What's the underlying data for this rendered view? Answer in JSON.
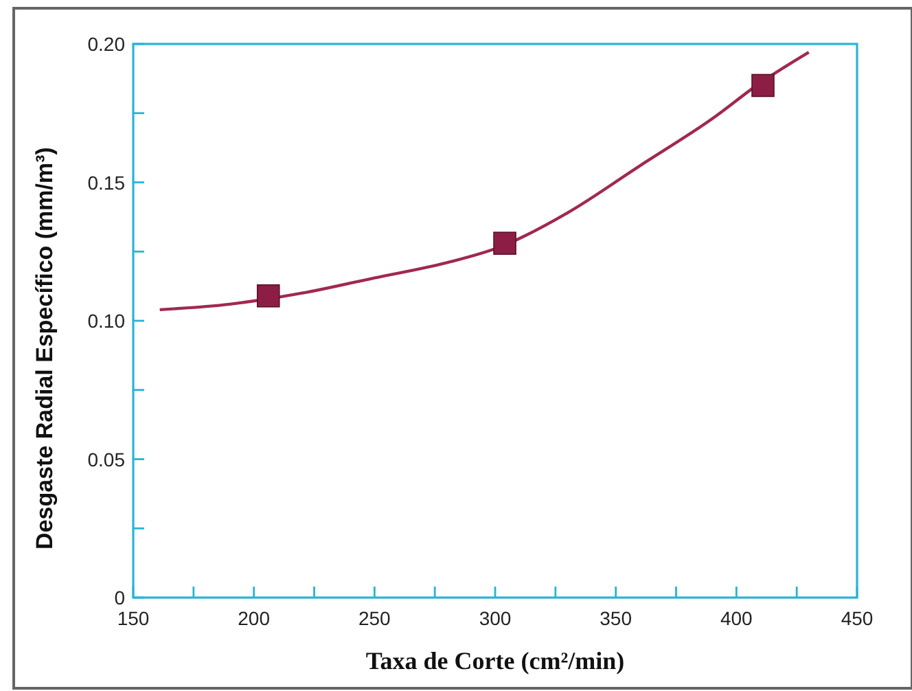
{
  "chart_data": {
    "type": "scatter",
    "xlabel": "Taxa de Corte (cm²/min)",
    "ylabel": "Desgaste Radial Específico (mm/m³)",
    "xlim": [
      150,
      450
    ],
    "ylim": [
      0,
      0.2
    ],
    "xticks": [
      150,
      {
        "value": 175,
        "label": null
      },
      200,
      {
        "value": 225,
        "label": null
      },
      250,
      {
        "value": 275,
        "label": null
      },
      300,
      {
        "value": 325,
        "label": null
      },
      350,
      {
        "value": 375,
        "label": null
      },
      400,
      {
        "value": 425,
        "label": null
      },
      450
    ],
    "yticks": [
      0,
      {
        "value": 0.025,
        "label": null
      },
      0.05,
      {
        "value": 0.075,
        "label": null
      },
      {
        "value": 0.1,
        "label": "0.10"
      },
      {
        "value": 0.125,
        "label": null
      },
      0.15,
      {
        "value": 0.175,
        "label": null
      },
      {
        "value": 0.2,
        "label": "0.20"
      }
    ],
    "grid": false,
    "series": [
      {
        "type": "line",
        "color": "#a0294f",
        "marker": "none",
        "x": [
          161,
          190,
          220,
          250,
          280,
          303,
          330,
          360,
          390,
          410,
          430
        ],
        "values": [
          0.104,
          0.106,
          0.11,
          0.1155,
          0.121,
          0.127,
          0.139,
          0.156,
          0.173,
          0.186,
          0.197
        ]
      },
      {
        "color": "#8c1e45",
        "marker": "square",
        "x": [
          206,
          304,
          411
        ],
        "values": [
          0.109,
          0.128,
          0.185
        ]
      }
    ]
  }
}
